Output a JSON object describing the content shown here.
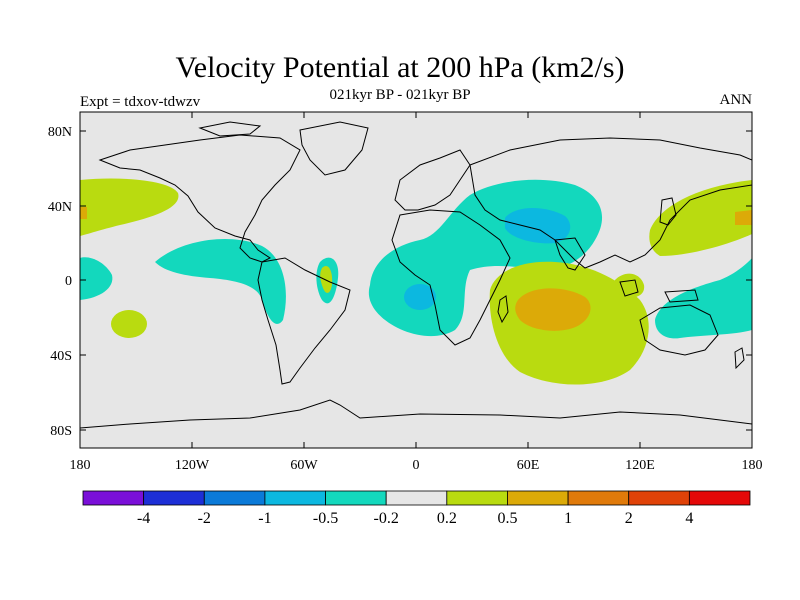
{
  "title": "Velocity Potential at 200 hPa (km2/s)",
  "subtitle": "021kyr BP - 021kyr BP",
  "left_string": "Expt = tdxov-tdwzv",
  "right_string": "ANN",
  "y_ticks": [
    "80N",
    "40N",
    "0",
    "40S",
    "80S"
  ],
  "x_ticks": [
    "180",
    "120W",
    "60W",
    "0",
    "60E",
    "120E",
    "180"
  ],
  "colorbar": {
    "colors": [
      "#7a0fd8",
      "#1d2fd6",
      "#0b7ad8",
      "#0cb8e0",
      "#13d8bd",
      "#e6e6e6",
      "#b9db10",
      "#dcaa08",
      "#e07a0a",
      "#e04208",
      "#e40808"
    ],
    "labels": [
      "-4",
      "-2",
      "-1",
      "-0.5",
      "-0.2",
      "0.2",
      "0.5",
      "1",
      "2",
      "4"
    ]
  },
  "colors": {
    "land_outline": "#000000",
    "background_field": "#e6e6e6",
    "neg_light": "#13d8bd",
    "neg_medium": "#0cb8e0",
    "pos_light": "#b9db10",
    "pos_medium": "#dcaa08"
  }
}
